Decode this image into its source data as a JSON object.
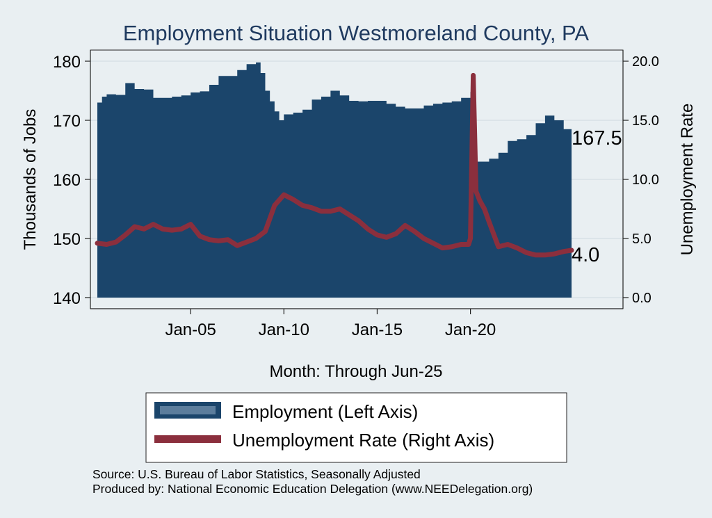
{
  "chart_data": {
    "type": "area+line",
    "title": "Employment Situation Westmoreland  County, PA",
    "xlabel": "Month: Through Jun-25",
    "ylabel_left": "Thousands of Jobs",
    "ylabel_right": "Unemployment Rate",
    "ylim_left": [
      140,
      180
    ],
    "ylim_right": [
      0,
      20
    ],
    "yticks_left": [
      "140",
      "150",
      "160",
      "170",
      "180"
    ],
    "yticks_right": [
      "0.0",
      "5.0",
      "10.0",
      "15.0",
      "20.0"
    ],
    "xticks": [
      "Jan-05",
      "Jan-10",
      "Jan-15",
      "Jan-20"
    ],
    "grid": true,
    "legend_position": "bottom",
    "end_labels": {
      "employment": "167.5",
      "unemployment": "4.0"
    },
    "series": [
      {
        "name": "Employment (Left Axis)",
        "axis": "left",
        "kind": "area",
        "color": "#1b456b",
        "x": [
          2000.0,
          2000.25,
          2000.5,
          2001.0,
          2001.5,
          2002.0,
          2002.5,
          2003.0,
          2003.5,
          2004.0,
          2004.5,
          2005.0,
          2005.5,
          2006.0,
          2006.5,
          2007.0,
          2007.5,
          2008.0,
          2008.5,
          2008.75,
          2009.0,
          2009.25,
          2009.5,
          2009.75,
          2010.0,
          2010.5,
          2011.0,
          2011.5,
          2012.0,
          2012.5,
          2013.0,
          2013.5,
          2014.0,
          2014.5,
          2015.0,
          2015.5,
          2016.0,
          2016.5,
          2017.0,
          2017.5,
          2018.0,
          2018.5,
          2019.0,
          2019.5,
          2020.0,
          2020.1,
          2020.25,
          2020.5,
          2021.0,
          2021.5,
          2022.0,
          2022.5,
          2023.0,
          2023.5,
          2024.0,
          2024.5,
          2025.0,
          2025.42
        ],
        "values": [
          173,
          174,
          174.4,
          174.3,
          176.3,
          175.3,
          175.2,
          173.8,
          173.8,
          174.0,
          174.2,
          174.7,
          174.9,
          176.0,
          177.5,
          177.5,
          178.5,
          179.5,
          179.8,
          178,
          175,
          173.2,
          171.5,
          170,
          171.0,
          171.3,
          171.8,
          173.5,
          174.0,
          175.0,
          174.2,
          173.3,
          173.2,
          173.3,
          173.3,
          172.8,
          172.3,
          172.0,
          172.0,
          172.5,
          172.8,
          173.0,
          173.2,
          173.8,
          174.8,
          170,
          163.0,
          163.0,
          163.5,
          164.5,
          166.5,
          166.8,
          167.5,
          169.5,
          170.8,
          170.0,
          168.5,
          167.5
        ]
      },
      {
        "name": "Unemployment Rate (Right Axis)",
        "axis": "right",
        "kind": "line",
        "color": "#8b2f3d",
        "x": [
          2000.0,
          2000.5,
          2001.0,
          2001.5,
          2002.0,
          2002.5,
          2003.0,
          2003.5,
          2004.0,
          2004.5,
          2005.0,
          2005.5,
          2006.0,
          2006.5,
          2007.0,
          2007.5,
          2008.0,
          2008.5,
          2009.0,
          2009.5,
          2010.0,
          2010.5,
          2011.0,
          2011.5,
          2012.0,
          2012.5,
          2013.0,
          2013.5,
          2014.0,
          2014.5,
          2015.0,
          2015.5,
          2016.0,
          2016.5,
          2017.0,
          2017.5,
          2018.0,
          2018.5,
          2019.0,
          2019.5,
          2019.9,
          2020.0,
          2020.15,
          2020.3,
          2020.5,
          2020.75,
          2021.0,
          2021.5,
          2022.0,
          2022.5,
          2023.0,
          2023.5,
          2024.0,
          2024.5,
          2025.0,
          2025.42
        ],
        "values": [
          4.6,
          4.5,
          4.7,
          5.3,
          6.0,
          5.8,
          6.2,
          5.8,
          5.7,
          5.8,
          6.2,
          5.2,
          4.9,
          4.8,
          4.9,
          4.4,
          4.7,
          5.0,
          5.6,
          7.8,
          8.7,
          8.3,
          7.8,
          7.6,
          7.3,
          7.3,
          7.5,
          7.0,
          6.5,
          5.8,
          5.3,
          5.1,
          5.4,
          6.1,
          5.6,
          5.0,
          4.6,
          4.2,
          4.3,
          4.5,
          4.5,
          5.0,
          18.8,
          9.0,
          8.2,
          7.5,
          6.4,
          4.3,
          4.5,
          4.2,
          3.8,
          3.6,
          3.6,
          3.7,
          3.9,
          4.0
        ]
      }
    ]
  },
  "notes": {
    "source": "Source: U.S. Bureau of Labor Statistics, Seasonally Adjusted",
    "producer": "Produced by: National Economic Education Delegation (www.NEEDelegation.org)"
  },
  "colors": {
    "background": "#e9eff2",
    "plot_background": "#e9eff2",
    "grid": "#d8e1e6",
    "employment": "#1b456b",
    "unemployment": "#8b2f3d",
    "title": "#1f3a5f"
  }
}
